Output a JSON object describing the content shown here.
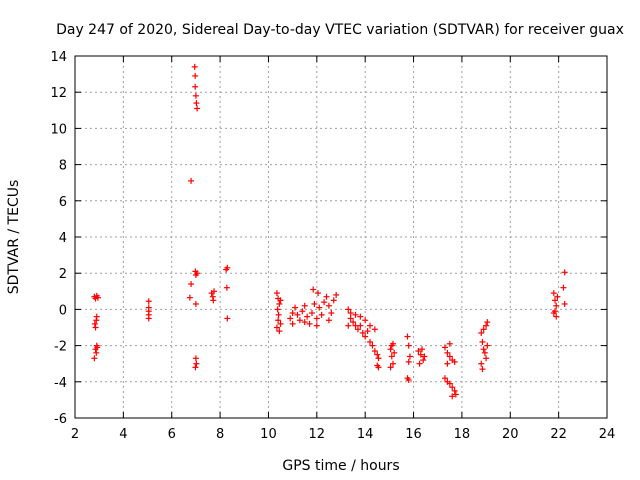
{
  "chart_data": {
    "type": "scatter",
    "title": "Day 247 of 2020, Sidereal Day-to-day VTEC variation (SDTVAR) for receiver guax",
    "xlabel": "GPS time / hours",
    "ylabel": "SDTVAR / TECUs",
    "xlim": [
      2,
      24
    ],
    "ylim": [
      -6,
      14
    ],
    "xticks": [
      2,
      4,
      6,
      8,
      10,
      12,
      14,
      16,
      18,
      20,
      22,
      24
    ],
    "yticks": [
      -6,
      -4,
      -2,
      0,
      2,
      4,
      6,
      8,
      10,
      12,
      14
    ],
    "grid": true,
    "marker": "+",
    "marker_color": "#ff0000",
    "series": [
      {
        "name": "SDTVAR",
        "points": [
          [
            2.8,
            0.7
          ],
          [
            2.85,
            0.6
          ],
          [
            2.9,
            0.75
          ],
          [
            2.95,
            0.65
          ],
          [
            2.82,
            -0.8
          ],
          [
            2.88,
            -0.6
          ],
          [
            2.9,
            -0.4
          ],
          [
            2.85,
            -1.0
          ],
          [
            2.9,
            -2.0
          ],
          [
            2.85,
            -2.2
          ],
          [
            2.88,
            -2.4
          ],
          [
            2.8,
            -2.7
          ],
          [
            2.92,
            -2.1
          ],
          [
            5.05,
            0.45
          ],
          [
            5.05,
            0.1
          ],
          [
            5.05,
            -0.1
          ],
          [
            5.05,
            -0.3
          ],
          [
            5.05,
            -0.5
          ],
          [
            6.8,
            7.1
          ],
          [
            6.95,
            13.4
          ],
          [
            6.97,
            12.9
          ],
          [
            6.97,
            12.3
          ],
          [
            7.0,
            11.8
          ],
          [
            7.02,
            11.4
          ],
          [
            7.05,
            11.1
          ],
          [
            6.8,
            1.4
          ],
          [
            6.75,
            0.65
          ],
          [
            6.98,
            2.1
          ],
          [
            7.0,
            1.9
          ],
          [
            7.05,
            2.0
          ],
          [
            7.0,
            0.3
          ],
          [
            7.0,
            -2.7
          ],
          [
            7.02,
            -3.0
          ],
          [
            6.98,
            -3.2
          ],
          [
            7.65,
            0.9
          ],
          [
            7.7,
            0.7
          ],
          [
            7.72,
            0.5
          ],
          [
            7.75,
            1.0
          ],
          [
            8.25,
            2.2
          ],
          [
            8.3,
            2.3
          ],
          [
            8.28,
            1.2
          ],
          [
            8.3,
            -0.5
          ],
          [
            10.35,
            0.9
          ],
          [
            10.4,
            0.6
          ],
          [
            10.45,
            0.3
          ],
          [
            10.38,
            0.0
          ],
          [
            10.42,
            -0.3
          ],
          [
            10.4,
            -0.6
          ],
          [
            10.35,
            -1.0
          ],
          [
            10.45,
            -1.2
          ],
          [
            10.5,
            -0.8
          ],
          [
            10.5,
            0.5
          ],
          [
            10.9,
            -0.5
          ],
          [
            11.0,
            -0.2
          ],
          [
            11.1,
            0.1
          ],
          [
            11.2,
            -0.3
          ],
          [
            11.3,
            -0.6
          ],
          [
            11.4,
            -0.1
          ],
          [
            11.5,
            0.2
          ],
          [
            11.6,
            -0.4
          ],
          [
            11.7,
            -0.8
          ],
          [
            11.8,
            -0.2
          ],
          [
            11.9,
            0.3
          ],
          [
            12.0,
            -0.5
          ],
          [
            12.1,
            0.1
          ],
          [
            12.2,
            -0.3
          ],
          [
            12.3,
            0.4
          ],
          [
            12.4,
            0.7
          ],
          [
            12.5,
            0.2
          ],
          [
            12.6,
            -0.2
          ],
          [
            12.7,
            0.5
          ],
          [
            12.8,
            0.8
          ],
          [
            11.0,
            -0.8
          ],
          [
            11.5,
            -0.7
          ],
          [
            12.0,
            -0.9
          ],
          [
            12.5,
            -0.6
          ],
          [
            11.85,
            1.1
          ],
          [
            12.05,
            0.9
          ],
          [
            13.3,
            -0.9
          ],
          [
            13.4,
            -0.5
          ],
          [
            13.5,
            -0.7
          ],
          [
            13.6,
            -0.9
          ],
          [
            13.7,
            -1.1
          ],
          [
            13.8,
            -0.9
          ],
          [
            13.9,
            -1.3
          ],
          [
            14.0,
            -1.5
          ],
          [
            14.1,
            -1.2
          ],
          [
            14.2,
            -1.8
          ],
          [
            14.3,
            -2.0
          ],
          [
            14.4,
            -2.3
          ],
          [
            14.5,
            -2.5
          ],
          [
            14.55,
            -2.7
          ],
          [
            13.4,
            -0.2
          ],
          [
            13.3,
            0.0
          ],
          [
            13.6,
            -0.3
          ],
          [
            13.8,
            -0.4
          ],
          [
            14.0,
            -0.6
          ],
          [
            14.2,
            -0.9
          ],
          [
            14.4,
            -1.1
          ],
          [
            14.5,
            -3.1
          ],
          [
            14.55,
            -3.2
          ],
          [
            15.05,
            -2.2
          ],
          [
            15.1,
            -2.6
          ],
          [
            15.15,
            -3.0
          ],
          [
            15.1,
            -2.0
          ],
          [
            15.2,
            -2.4
          ],
          [
            15.05,
            -3.2
          ],
          [
            15.15,
            -1.9
          ],
          [
            15.75,
            -1.5
          ],
          [
            15.8,
            -2.0
          ],
          [
            15.85,
            -2.6
          ],
          [
            15.8,
            -2.9
          ],
          [
            15.75,
            -3.8
          ],
          [
            15.8,
            -3.9
          ],
          [
            16.2,
            -2.3
          ],
          [
            16.3,
            -2.5
          ],
          [
            16.4,
            -2.8
          ],
          [
            16.25,
            -3.0
          ],
          [
            16.35,
            -2.2
          ],
          [
            16.45,
            -2.6
          ],
          [
            17.3,
            -2.1
          ],
          [
            17.4,
            -2.4
          ],
          [
            17.5,
            -2.6
          ],
          [
            17.6,
            -2.8
          ],
          [
            17.7,
            -2.9
          ],
          [
            17.4,
            -3.0
          ],
          [
            17.5,
            -1.9
          ],
          [
            17.3,
            -3.8
          ],
          [
            17.4,
            -4.0
          ],
          [
            17.5,
            -4.1
          ],
          [
            17.6,
            -4.3
          ],
          [
            17.7,
            -4.5
          ],
          [
            17.75,
            -4.7
          ],
          [
            17.6,
            -4.8
          ],
          [
            18.8,
            -1.3
          ],
          [
            18.9,
            -1.1
          ],
          [
            19.0,
            -0.9
          ],
          [
            19.05,
            -0.7
          ],
          [
            18.85,
            -1.8
          ],
          [
            18.9,
            -2.2
          ],
          [
            18.95,
            -2.4
          ],
          [
            19.0,
            -2.7
          ],
          [
            18.8,
            -3.0
          ],
          [
            18.85,
            -3.3
          ],
          [
            19.05,
            -2.0
          ],
          [
            21.8,
            0.9
          ],
          [
            21.85,
            0.5
          ],
          [
            21.9,
            0.2
          ],
          [
            21.85,
            -0.1
          ],
          [
            21.9,
            -0.4
          ],
          [
            21.95,
            0.7
          ],
          [
            21.8,
            -0.2
          ],
          [
            22.25,
            2.05
          ],
          [
            22.2,
            1.2
          ],
          [
            22.25,
            0.3
          ]
        ]
      }
    ]
  }
}
